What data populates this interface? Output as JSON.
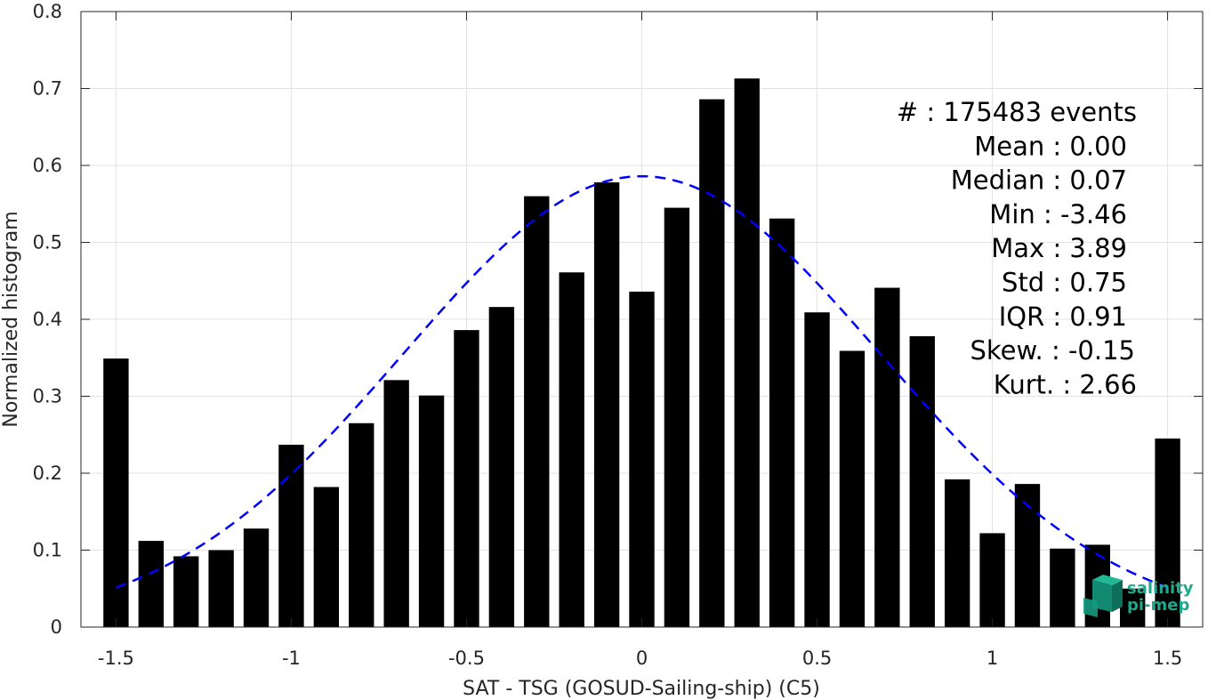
{
  "chart_data": {
    "type": "bar",
    "xlabel": "SAT - TSG (GOSUD-Sailing-ship) (C5)",
    "ylabel": "Normalized histogram",
    "xlim": [
      -1.6,
      1.6
    ],
    "ylim": [
      0,
      0.8
    ],
    "grid": true,
    "x_ticks": [
      -1.5,
      -1,
      -0.5,
      0,
      0.5,
      1,
      1.5
    ],
    "x_tick_labels": [
      "-1.5",
      "-1",
      "-0.5",
      "0",
      "0.5",
      "1",
      "1.5"
    ],
    "y_ticks": [
      0,
      0.1,
      0.2,
      0.3,
      0.4,
      0.5,
      0.6,
      0.7,
      0.8
    ],
    "y_tick_labels": [
      "0",
      "0.1",
      "0.2",
      "0.3",
      "0.4",
      "0.5",
      "0.6",
      "0.7",
      "0.8"
    ],
    "bar_color": "#000000",
    "bins": [
      -1.5,
      -1.4,
      -1.3,
      -1.2,
      -1.1,
      -1.0,
      -0.9,
      -0.8,
      -0.7,
      -0.6,
      -0.5,
      -0.4,
      -0.3,
      -0.2,
      -0.1,
      0.0,
      0.1,
      0.2,
      0.3,
      0.4,
      0.5,
      0.6,
      0.7,
      0.8,
      0.9,
      1.0,
      1.1,
      1.2,
      1.3,
      1.4,
      1.5
    ],
    "values": [
      0.349,
      0.112,
      0.092,
      0.1,
      0.128,
      0.237,
      0.182,
      0.265,
      0.321,
      0.301,
      0.386,
      0.416,
      0.56,
      0.461,
      0.578,
      0.436,
      0.545,
      0.686,
      0.713,
      0.531,
      0.409,
      0.359,
      0.441,
      0.378,
      0.192,
      0.122,
      0.186,
      0.102,
      0.107,
      0.05,
      0.245
    ],
    "fit": {
      "type": "gaussian",
      "style": "dashed",
      "color": "#0000ff",
      "mean": 0.0,
      "std": 0.68,
      "peak": 0.586,
      "x_range": [
        -1.5,
        1.5
      ]
    },
    "annotations": [
      "#  : 175483 events",
      "Mean : 0.00",
      "Median : 0.07",
      "Min : -3.46",
      "Max : 3.89",
      "Std : 0.75",
      "IQR : 0.91",
      "Skew. : -0.15",
      "Kurt. : 2.66"
    ]
  },
  "logo": {
    "line1": "salinity",
    "line2": "pi-mep",
    "color": "#1fa98c"
  }
}
